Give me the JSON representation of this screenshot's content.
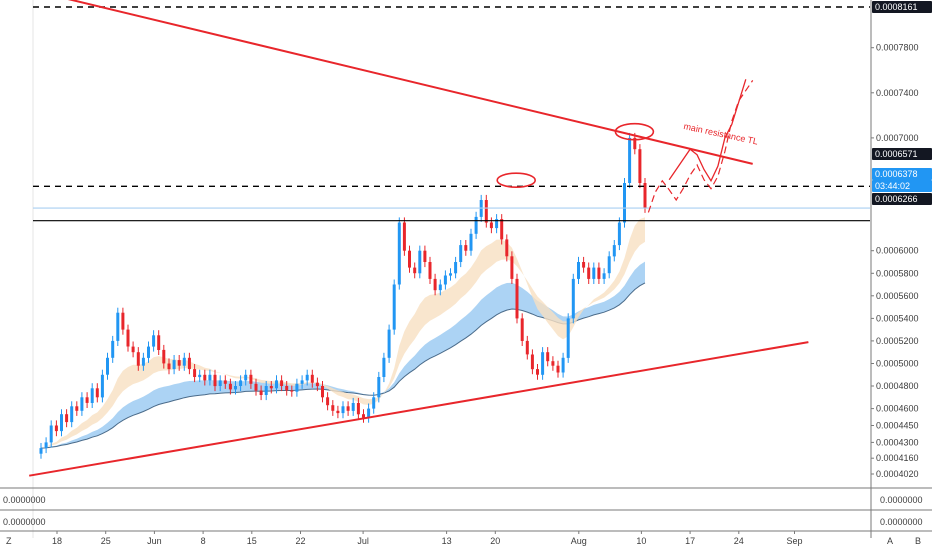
{
  "chart_data": {
    "type": "candlestick",
    "price_axis": {
      "min": 0.00038,
      "max": 0.000825,
      "ticks": [
        "0.0007800",
        "0.0007400",
        "0.0007000",
        "0.0006000",
        "0.0005800",
        "0.0005600",
        "0.0005400",
        "0.0005200",
        "0.0005000",
        "0.0004800",
        "0.0004600",
        "0.0004450",
        "0.0004300",
        "0.0004160",
        "0.0004020"
      ],
      "tick_values": [
        0.00078,
        0.00074,
        0.0007,
        0.0006,
        0.00058,
        0.00056,
        0.00054,
        0.00052,
        0.0005,
        0.00048,
        0.00046,
        0.000445,
        0.00043,
        0.000416,
        0.000402
      ]
    },
    "time_axis": {
      "labels": [
        "18",
        "25",
        "Jun",
        "8",
        "15",
        "22",
        "Jul",
        "13",
        "20",
        "Aug",
        "10",
        "17",
        "24",
        "Sep"
      ],
      "dates": [
        "2020-05-18",
        "2020-05-25",
        "2020-06-01",
        "2020-06-08",
        "2020-06-15",
        "2020-06-22",
        "2020-07-01",
        "2020-07-13",
        "2020-07-20",
        "2020-08-01",
        "2020-08-10",
        "2020-08-17",
        "2020-08-24",
        "2020-09-01"
      ]
    },
    "price_labels": [
      {
        "name": "top-dashed-level",
        "text": "0.0008161",
        "value": 0.0008161,
        "bg": "#131722",
        "fg": "#ffffff"
      },
      {
        "name": "mid-dashed-level",
        "text": "0.0006571",
        "value": 0.0006571,
        "bg": "#131722",
        "fg": "#ffffff"
      },
      {
        "name": "last-price",
        "text": "0.0006378",
        "value": 0.0006378,
        "bg": "#2196f3",
        "fg": "#ffffff"
      },
      {
        "name": "countdown",
        "text": "03:44:02",
        "value": 0.000626,
        "bg": "#2196f3",
        "fg": "#ffffff"
      },
      {
        "name": "support-level",
        "text": "0.0006266",
        "value": 0.0006266,
        "bg": "#131722",
        "fg": "#ffffff"
      }
    ],
    "horizontal_levels": [
      {
        "value": 0.0008161,
        "style": "dashed",
        "color": "#000000"
      },
      {
        "value": 0.0006571,
        "style": "dashed",
        "color": "#000000"
      },
      {
        "value": 0.0006266,
        "style": "solid",
        "color": "#000000"
      },
      {
        "value": 0.0006378,
        "style": "solid",
        "color": "#a9cff2"
      }
    ],
    "trendlines": [
      {
        "name": "resistance",
        "color": "#e8262b",
        "from": {
          "date": "2020-05-17",
          "price": 0.000827
        },
        "to": {
          "date": "2020-08-26",
          "price": 0.000677
        }
      },
      {
        "name": "support",
        "color": "#e8262b",
        "from": {
          "date": "2020-05-14",
          "price": 0.0004005
        },
        "to": {
          "date": "2020-09-03",
          "price": 0.000519
        }
      }
    ],
    "annotation": {
      "text": "main resistance TL",
      "color": "#e8262b"
    },
    "colors": {
      "up": "#2196f3",
      "down": "#e8262b",
      "ema_band": "#9ecbf2",
      "ema_band_edge": "#4a6b8a",
      "fast_band": "#f7e0c2"
    },
    "candles": {
      "start_date": "2020-05-15",
      "interval": "12h",
      "close": [
        0.000425,
        0.00043,
        0.000445,
        0.00044,
        0.000455,
        0.000448,
        0.000462,
        0.000458,
        0.00047,
        0.000465,
        0.000478,
        0.00047,
        0.00049,
        0.000505,
        0.00052,
        0.000545,
        0.00053,
        0.000515,
        0.00051,
        0.000498,
        0.000505,
        0.000515,
        0.000525,
        0.000512,
        0.0005,
        0.000495,
        0.000503,
        0.000498,
        0.000505,
        0.000495,
        0.000488,
        0.00049,
        0.000485,
        0.00049,
        0.00048,
        0.000485,
        0.000482,
        0.000477,
        0.00048,
        0.000485,
        0.00049,
        0.000482,
        0.000476,
        0.000472,
        0.00048,
        0.000478,
        0.000485,
        0.00048,
        0.000476,
        0.000475,
        0.000482,
        0.000485,
        0.00049,
        0.000483,
        0.00048,
        0.00047,
        0.000463,
        0.000458,
        0.000456,
        0.000462,
        0.000458,
        0.000465,
        0.000455,
        0.000452,
        0.00046,
        0.00047,
        0.000488,
        0.000505,
        0.00053,
        0.00057,
        0.000625,
        0.0006,
        0.000585,
        0.00058,
        0.0006,
        0.00059,
        0.000575,
        0.000565,
        0.00057,
        0.000578,
        0.00058,
        0.00059,
        0.000605,
        0.0006,
        0.000615,
        0.00063,
        0.000645,
        0.000625,
        0.00062,
        0.000628,
        0.00061,
        0.000595,
        0.000575,
        0.00054,
        0.00052,
        0.000508,
        0.000495,
        0.00049,
        0.00051,
        0.000502,
        0.000498,
        0.000492,
        0.000505,
        0.00054,
        0.000575,
        0.00059,
        0.000585,
        0.000575,
        0.000585,
        0.000575,
        0.00058,
        0.000595,
        0.000605,
        0.000625,
        0.00066,
        0.0007,
        0.00069,
        0.00066,
        0.000638
      ]
    }
  }
}
